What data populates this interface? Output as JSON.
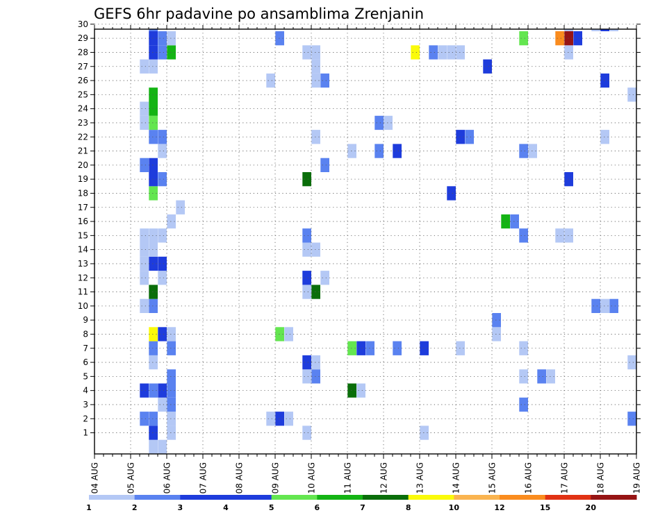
{
  "chart_data": {
    "type": "heatmap",
    "title": "GEFS 6hr padavine po ansamblima Zrenjanin",
    "xlabel": "",
    "ylabel": "",
    "x_ticks": [
      "04 AUG",
      "05 AUG",
      "06 AUG",
      "07 AUG",
      "08 AUG",
      "09 AUG",
      "10 AUG",
      "11 AUG",
      "12 AUG",
      "13 AUG",
      "14 AUG",
      "15 AUG",
      "16 AUG",
      "17 AUG",
      "18 AUG",
      "19 AUG"
    ],
    "y_ticks": [
      "1",
      "2",
      "3",
      "4",
      "5",
      "6",
      "7",
      "8",
      "9",
      "10",
      "11",
      "12",
      "13",
      "14",
      "15",
      "16",
      "17",
      "18",
      "19",
      "20",
      "21",
      "22",
      "23",
      "24",
      "25",
      "26",
      "27",
      "28",
      "29",
      "30"
    ],
    "x_range": [
      0,
      60
    ],
    "y_range": [
      0,
      30
    ],
    "x_unit": "6-hour steps from 04 AUG 00Z",
    "grid": true,
    "colorbar": {
      "labels": [
        "1",
        "2",
        "3",
        "4",
        "5",
        "6",
        "7",
        "8",
        "10",
        "12",
        "15",
        "20"
      ],
      "colors": [
        "#b4c8f5",
        "#5a82f0",
        "#1e3cdc",
        "#1e3cdc",
        "#64e650",
        "#14b414",
        "#0a6e0a",
        "#fafa0a",
        "#fab450",
        "#fa8c1e",
        "#e13214",
        "#961414",
        "#640a0a"
      ]
    },
    "cells": [
      {
        "x": 6,
        "y": -1,
        "c": 0
      },
      {
        "x": 7,
        "y": -1,
        "c": 0
      },
      {
        "x": 6,
        "y": 0,
        "c": 2
      },
      {
        "x": 8,
        "y": 0,
        "c": 0
      },
      {
        "x": 23,
        "y": 0,
        "c": 0
      },
      {
        "x": 36,
        "y": 0,
        "c": 0
      },
      {
        "x": 5,
        "y": 1,
        "c": 1
      },
      {
        "x": 6,
        "y": 1,
        "c": 1
      },
      {
        "x": 8,
        "y": 1,
        "c": 0
      },
      {
        "x": 19,
        "y": 1,
        "c": 0
      },
      {
        "x": 20,
        "y": 1,
        "c": 2
      },
      {
        "x": 21,
        "y": 1,
        "c": 0
      },
      {
        "x": 59,
        "y": 1,
        "c": 1
      },
      {
        "x": 7,
        "y": 2,
        "c": 0
      },
      {
        "x": 8,
        "y": 2,
        "c": 1
      },
      {
        "x": 47,
        "y": 2,
        "c": 1
      },
      {
        "x": 5,
        "y": 3,
        "c": 2
      },
      {
        "x": 6,
        "y": 3,
        "c": 1
      },
      {
        "x": 7,
        "y": 3,
        "c": 2
      },
      {
        "x": 8,
        "y": 3,
        "c": 1
      },
      {
        "x": 28,
        "y": 3,
        "c": 6
      },
      {
        "x": 29,
        "y": 3,
        "c": 0
      },
      {
        "x": 8,
        "y": 4,
        "c": 1
      },
      {
        "x": 23,
        "y": 4,
        "c": 0
      },
      {
        "x": 24,
        "y": 4,
        "c": 1
      },
      {
        "x": 47,
        "y": 4,
        "c": 0
      },
      {
        "x": 49,
        "y": 4,
        "c": 1
      },
      {
        "x": 50,
        "y": 4,
        "c": 0
      },
      {
        "x": 6,
        "y": 5,
        "c": 0
      },
      {
        "x": 23,
        "y": 5,
        "c": 2
      },
      {
        "x": 24,
        "y": 5,
        "c": 0
      },
      {
        "x": 59,
        "y": 5,
        "c": 0
      },
      {
        "x": 6,
        "y": 6,
        "c": 1
      },
      {
        "x": 8,
        "y": 6,
        "c": 1
      },
      {
        "x": 28,
        "y": 6,
        "c": 4
      },
      {
        "x": 29,
        "y": 6,
        "c": 2
      },
      {
        "x": 30,
        "y": 6,
        "c": 1
      },
      {
        "x": 33,
        "y": 6,
        "c": 1
      },
      {
        "x": 36,
        "y": 6,
        "c": 2
      },
      {
        "x": 40,
        "y": 6,
        "c": 0
      },
      {
        "x": 47,
        "y": 6,
        "c": 0
      },
      {
        "x": 6,
        "y": 7,
        "c": 7
      },
      {
        "x": 7,
        "y": 7,
        "c": 2
      },
      {
        "x": 8,
        "y": 7,
        "c": 0
      },
      {
        "x": 20,
        "y": 7,
        "c": 4
      },
      {
        "x": 21,
        "y": 7,
        "c": 0
      },
      {
        "x": 44,
        "y": 7,
        "c": 0
      },
      {
        "x": 44,
        "y": 8,
        "c": 1
      },
      {
        "x": 5,
        "y": 9,
        "c": 0
      },
      {
        "x": 6,
        "y": 9,
        "c": 1
      },
      {
        "x": 55,
        "y": 9,
        "c": 1
      },
      {
        "x": 56,
        "y": 9,
        "c": 0
      },
      {
        "x": 57,
        "y": 9,
        "c": 1
      },
      {
        "x": 6,
        "y": 10,
        "c": 6
      },
      {
        "x": 23,
        "y": 10,
        "c": 0
      },
      {
        "x": 24,
        "y": 10,
        "c": 6
      },
      {
        "x": 5,
        "y": 11,
        "c": 0
      },
      {
        "x": 7,
        "y": 11,
        "c": 0
      },
      {
        "x": 23,
        "y": 11,
        "c": 2
      },
      {
        "x": 25,
        "y": 11,
        "c": 0
      },
      {
        "x": 5,
        "y": 12,
        "c": 0
      },
      {
        "x": 6,
        "y": 12,
        "c": 2
      },
      {
        "x": 7,
        "y": 12,
        "c": 2
      },
      {
        "x": 5,
        "y": 13,
        "c": 0
      },
      {
        "x": 6,
        "y": 13,
        "c": 0
      },
      {
        "x": 23,
        "y": 13,
        "c": 0
      },
      {
        "x": 24,
        "y": 13,
        "c": 0
      },
      {
        "x": 5,
        "y": 14,
        "c": 0
      },
      {
        "x": 6,
        "y": 14,
        "c": 0
      },
      {
        "x": 7,
        "y": 14,
        "c": 0
      },
      {
        "x": 23,
        "y": 14,
        "c": 1
      },
      {
        "x": 47,
        "y": 14,
        "c": 1
      },
      {
        "x": 51,
        "y": 14,
        "c": 0
      },
      {
        "x": 52,
        "y": 14,
        "c": 0
      },
      {
        "x": 8,
        "y": 15,
        "c": 0
      },
      {
        "x": 45,
        "y": 15,
        "c": 5
      },
      {
        "x": 46,
        "y": 15,
        "c": 1
      },
      {
        "x": 9,
        "y": 16,
        "c": 0
      },
      {
        "x": 6,
        "y": 17,
        "c": 4
      },
      {
        "x": 39,
        "y": 17,
        "c": 2
      },
      {
        "x": 6,
        "y": 18,
        "c": 2
      },
      {
        "x": 7,
        "y": 18,
        "c": 1
      },
      {
        "x": 23,
        "y": 18,
        "c": 6
      },
      {
        "x": 52,
        "y": 18,
        "c": 2
      },
      {
        "x": 5,
        "y": 19,
        "c": 1
      },
      {
        "x": 6,
        "y": 19,
        "c": 2
      },
      {
        "x": 25,
        "y": 19,
        "c": 1
      },
      {
        "x": 7,
        "y": 20,
        "c": 0
      },
      {
        "x": 28,
        "y": 20,
        "c": 0
      },
      {
        "x": 31,
        "y": 20,
        "c": 1
      },
      {
        "x": 33,
        "y": 20,
        "c": 2
      },
      {
        "x": 47,
        "y": 20,
        "c": 1
      },
      {
        "x": 48,
        "y": 20,
        "c": 0
      },
      {
        "x": 6,
        "y": 21,
        "c": 1
      },
      {
        "x": 7,
        "y": 21,
        "c": 1
      },
      {
        "x": 24,
        "y": 21,
        "c": 0
      },
      {
        "x": 40,
        "y": 21,
        "c": 2
      },
      {
        "x": 41,
        "y": 21,
        "c": 1
      },
      {
        "x": 56,
        "y": 21,
        "c": 0
      },
      {
        "x": 5,
        "y": 22,
        "c": 0
      },
      {
        "x": 6,
        "y": 22,
        "c": 4
      },
      {
        "x": 31,
        "y": 22,
        "c": 1
      },
      {
        "x": 32,
        "y": 22,
        "c": 0
      },
      {
        "x": 5,
        "y": 23,
        "c": 0
      },
      {
        "x": 6,
        "y": 23,
        "c": 5
      },
      {
        "x": 6,
        "y": 24,
        "c": 5
      },
      {
        "x": 59,
        "y": 24,
        "c": 0
      },
      {
        "x": 19,
        "y": 25,
        "c": 0
      },
      {
        "x": 24,
        "y": 25,
        "c": 0
      },
      {
        "x": 25,
        "y": 25,
        "c": 1
      },
      {
        "x": 56,
        "y": 25,
        "c": 2
      },
      {
        "x": 5,
        "y": 26,
        "c": 0
      },
      {
        "x": 6,
        "y": 26,
        "c": 0
      },
      {
        "x": 24,
        "y": 26,
        "c": 0
      },
      {
        "x": 43,
        "y": 26,
        "c": 2
      },
      {
        "x": 6,
        "y": 27,
        "c": 2
      },
      {
        "x": 7,
        "y": 27,
        "c": 1
      },
      {
        "x": 8,
        "y": 27,
        "c": 5
      },
      {
        "x": 23,
        "y": 27,
        "c": 0
      },
      {
        "x": 24,
        "y": 27,
        "c": 0
      },
      {
        "x": 35,
        "y": 27,
        "c": 7
      },
      {
        "x": 37,
        "y": 27,
        "c": 1
      },
      {
        "x": 38,
        "y": 27,
        "c": 0
      },
      {
        "x": 39,
        "y": 27,
        "c": 0
      },
      {
        "x": 40,
        "y": 27,
        "c": 0
      },
      {
        "x": 52,
        "y": 27,
        "c": 0
      },
      {
        "x": 6,
        "y": 28,
        "c": 2
      },
      {
        "x": 7,
        "y": 28,
        "c": 1
      },
      {
        "x": 8,
        "y": 28,
        "c": 0
      },
      {
        "x": 20,
        "y": 28,
        "c": 1
      },
      {
        "x": 47,
        "y": 28,
        "c": 4
      },
      {
        "x": 51,
        "y": 28,
        "c": 9
      },
      {
        "x": 52,
        "y": 28,
        "c": 11
      },
      {
        "x": 53,
        "y": 28,
        "c": 2
      },
      {
        "x": 6,
        "y": 29,
        "c": 1
      },
      {
        "x": 52,
        "y": 29,
        "c": 0
      },
      {
        "x": 55,
        "y": 29,
        "c": 0
      },
      {
        "x": 56,
        "y": 29,
        "c": 2
      },
      {
        "x": 57,
        "y": 29,
        "c": 0
      }
    ]
  }
}
